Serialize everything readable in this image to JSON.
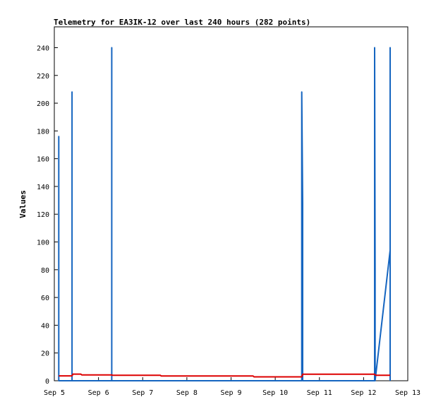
{
  "chart_data": {
    "type": "line",
    "title": "Telemetry for EA3IK-12 over last 240 hours (282 points)",
    "xlabel": "",
    "ylabel": "Values",
    "x_ticks": [
      "Sep 5",
      "Sep 6",
      "Sep 7",
      "Sep 8",
      "Sep 9",
      "Sep 10",
      "Sep 11",
      "Sep 12",
      "Sep 13"
    ],
    "xlim": [
      5.0,
      13.0
    ],
    "ylim": [
      0,
      255
    ],
    "y_ticks": [
      0,
      20,
      40,
      60,
      80,
      100,
      120,
      140,
      160,
      180,
      200,
      220,
      240
    ],
    "grid": false,
    "series": [
      {
        "color": "#1565c0",
        "x": [
          5.1,
          5.1,
          5.1,
          5.4,
          5.4,
          5.4,
          6.3,
          6.3,
          6.3,
          10.6,
          10.6,
          10.62,
          10.62,
          10.62,
          12.25,
          12.25,
          12.26,
          12.26,
          12.26,
          12.6,
          12.6,
          12.6
        ],
        "y": [
          0,
          176,
          0,
          0,
          208,
          0,
          0,
          240,
          0,
          0,
          208,
          128,
          0,
          0,
          0,
          240,
          80,
          0,
          0,
          94,
          240,
          0
        ]
      },
      {
        "color": "#dd0000",
        "x": [
          5.1,
          5.4,
          5.42,
          5.6,
          5.62,
          6.3,
          6.32,
          7.4,
          7.42,
          9.5,
          9.52,
          10.6,
          10.62,
          12.25,
          12.27,
          12.6
        ],
        "y": [
          3.5,
          3.5,
          4.8,
          4.8,
          4.2,
          4.2,
          3.9,
          3.9,
          3.4,
          3.4,
          2.8,
          2.8,
          4.7,
          4.7,
          3.9,
          3.9
        ]
      }
    ]
  }
}
